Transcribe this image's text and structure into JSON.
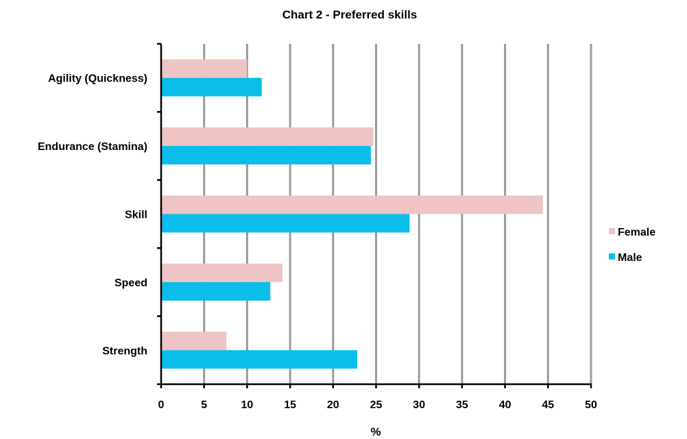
{
  "chart_data": {
    "type": "bar",
    "orientation": "horizontal",
    "title": "Chart  2 - Preferred  skills",
    "xlabel": "%",
    "ylabel": "",
    "categories": [
      "Agility (Quickness)",
      "Endurance (Stamina)",
      "Skill",
      "Speed",
      "Strength"
    ],
    "series": [
      {
        "name": "Female",
        "color": "#EEC4C4",
        "values": [
          10.0,
          24.7,
          44.4,
          14.1,
          7.6
        ]
      },
      {
        "name": "Male",
        "color": "#0BBDEB",
        "values": [
          11.7,
          24.4,
          28.9,
          12.7,
          22.8
        ]
      }
    ],
    "xlim": [
      0,
      50
    ],
    "xticks": [
      0,
      5,
      10,
      15,
      20,
      25,
      30,
      35,
      40,
      45,
      50
    ],
    "grid": "vertical",
    "gridline_color": "#999999",
    "legend_position": "right"
  }
}
